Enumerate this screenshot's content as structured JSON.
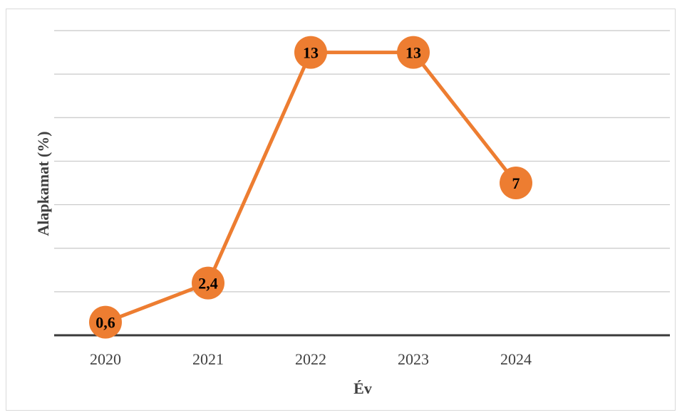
{
  "chart_data": {
    "type": "line",
    "categories": [
      "2020",
      "2021",
      "2022",
      "2023",
      "2024"
    ],
    "series": [
      {
        "values": [
          0.6,
          2.4,
          13,
          13,
          7
        ],
        "labels": [
          "0,6",
          "2,4",
          "13",
          "13",
          "7"
        ],
        "color": "#ed7d31"
      }
    ],
    "xlabel": "Év",
    "ylabel": "Alapkamat (%)",
    "ylim": [
      0,
      14
    ],
    "grid": true,
    "legend": "none",
    "gridline_color": "#c8c8c8",
    "baseline_color": "#3a3a3a"
  }
}
